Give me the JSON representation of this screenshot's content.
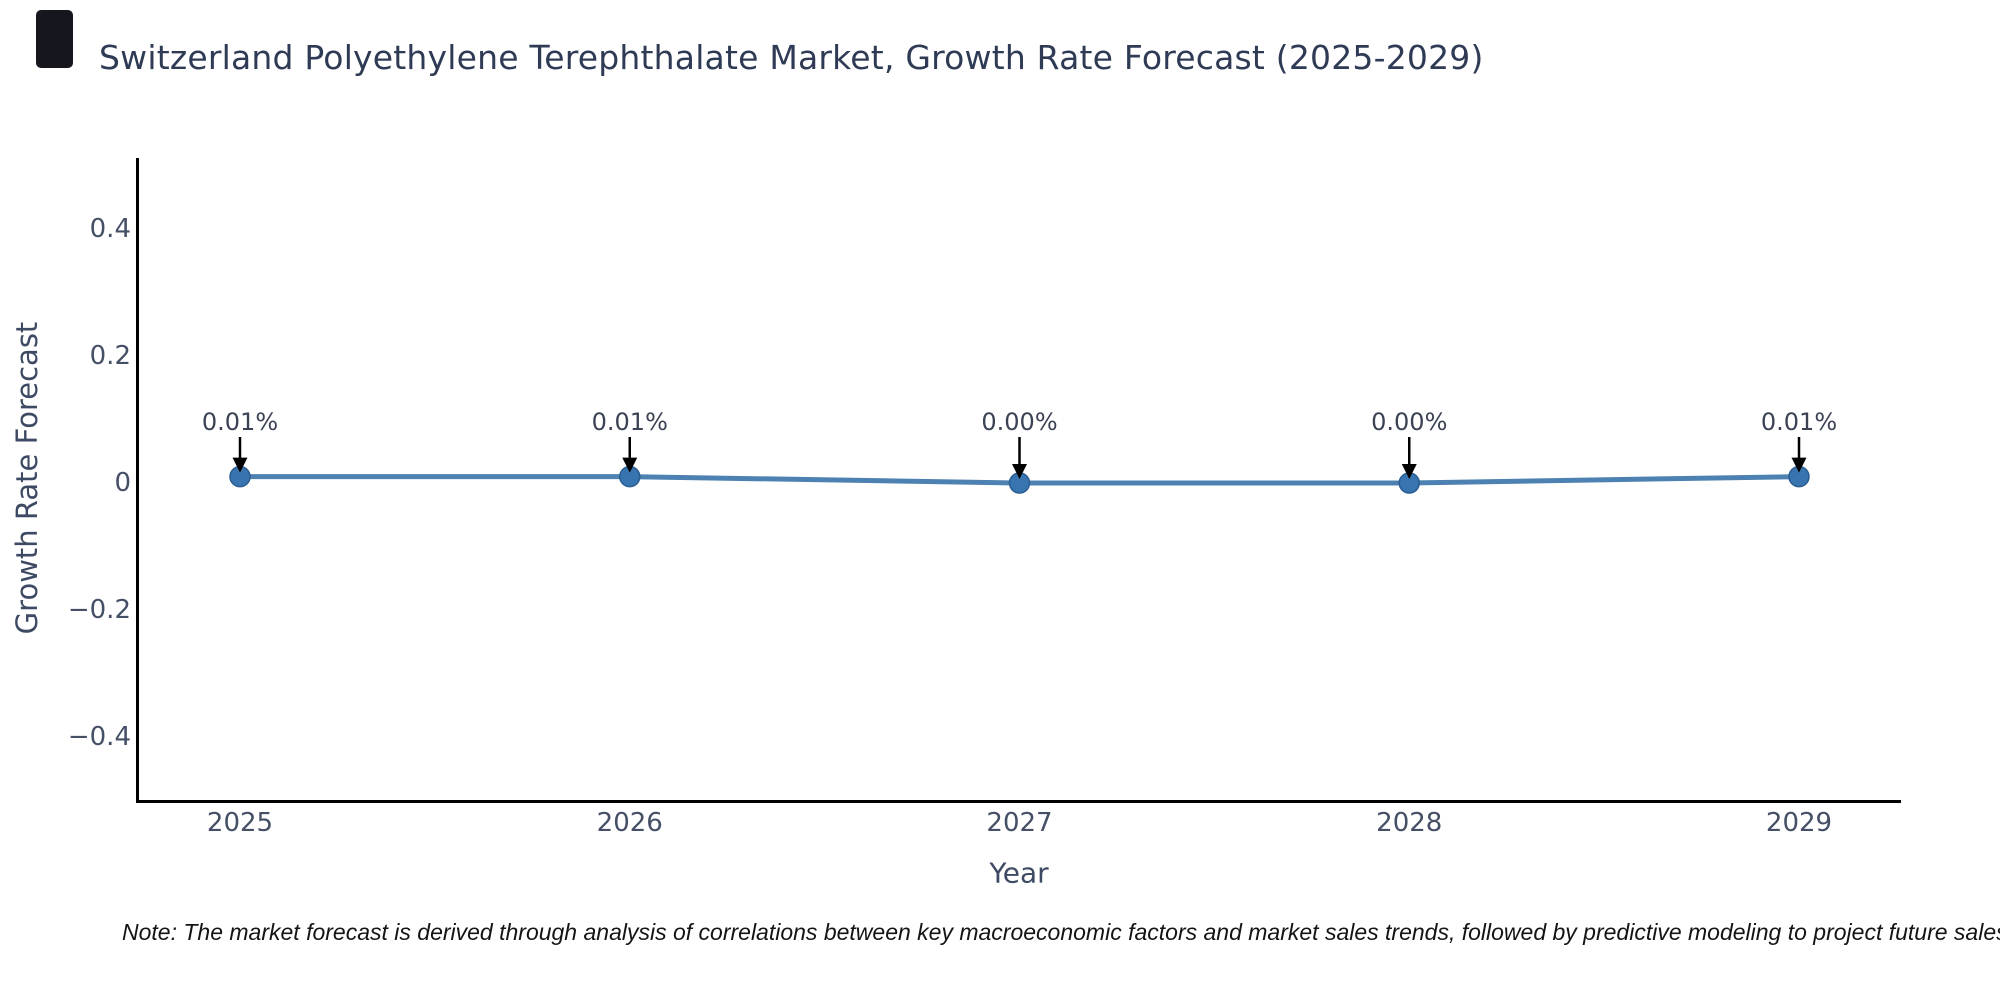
{
  "corner_mark_color": "#16161f",
  "note": {
    "text": "Note: The market forecast is derived through analysis of correlations between key macroeconomic factors and market sales trends, followed by predictive modeling to project future sales"
  },
  "chart_data": {
    "type": "line",
    "title": "Switzerland Polyethylene Terephthalate Market, Growth Rate Forecast (2025-2029)",
    "xlabel": "Year",
    "ylabel": "Growth Rate Forecast",
    "x": [
      2025,
      2026,
      2027,
      2028,
      2029
    ],
    "xtick_labels": [
      "2025",
      "2026",
      "2027",
      "2028",
      "2029"
    ],
    "series": [
      {
        "name": "Growth Rate Forecast",
        "values": [
          0.01,
          0.01,
          0.0,
          0.0,
          0.01
        ]
      }
    ],
    "point_labels": [
      "0.01%",
      "0.01%",
      "0.00%",
      "0.00%",
      "0.01%"
    ],
    "ylim": [
      -0.5,
      0.51
    ],
    "yticks": [
      0.4,
      0.2,
      0,
      -0.2,
      -0.4
    ],
    "ytick_labels": [
      "0.4",
      "0.2",
      "0",
      "−0.2",
      "−0.4"
    ],
    "grid": false,
    "legend": "none",
    "annotations_have_arrows": true,
    "colors": {
      "line": "#4d81b1",
      "marker_fill": "#3875b0",
      "marker_edge": "#2a5d92",
      "axis_line": "#000000",
      "title_text": "#2f3b55",
      "tick_text": "#454f66",
      "annotation_text": "#3a4254",
      "arrow": "#000000"
    }
  }
}
